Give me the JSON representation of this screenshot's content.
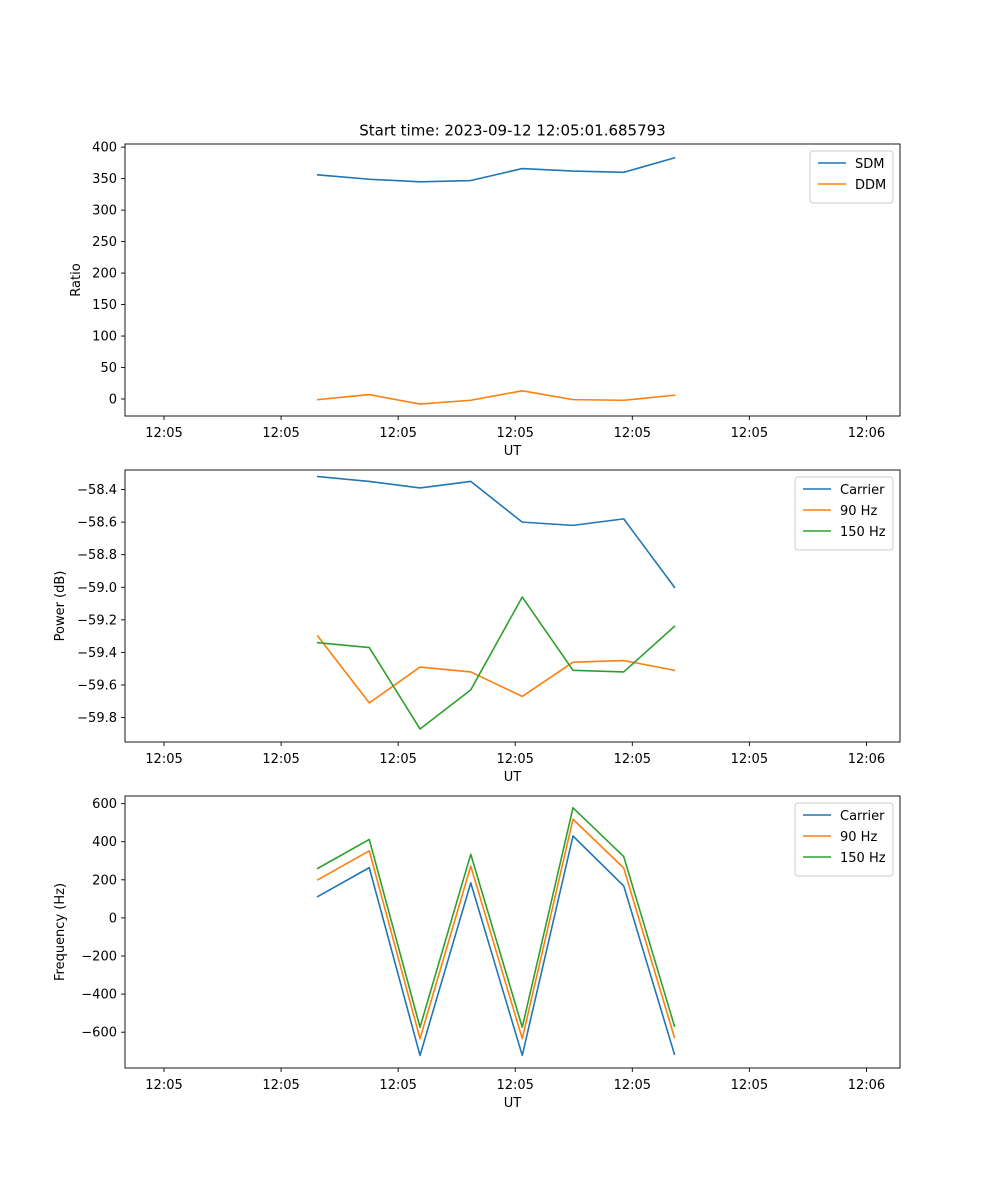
{
  "title": "Start time: 2023-09-12 12:05:01.685793",
  "chart_data": [
    {
      "type": "line",
      "title": "Start time: 2023-09-12 12:05:01.685793",
      "xlabel": "UT",
      "ylabel": "Ratio",
      "xticks": [
        "12:05",
        "12:05",
        "12:05",
        "12:05",
        "12:05",
        "12:05",
        "12:06"
      ],
      "yticks": [
        0,
        50,
        100,
        150,
        200,
        250,
        300,
        350,
        400
      ],
      "ylim": [
        -27,
        405
      ],
      "legend_position": "top-right",
      "x": [
        2.47,
        3.13,
        3.78,
        4.43,
        5.09,
        5.74,
        6.39,
        7.04
      ],
      "series": [
        {
          "name": "SDM",
          "color": "#1f77b4",
          "values": [
            356,
            349,
            345,
            347,
            366,
            362,
            360,
            383
          ]
        },
        {
          "name": "DDM",
          "color": "#ff7f0e",
          "values": [
            -1,
            7,
            -8,
            -2,
            13,
            -1,
            -2,
            6
          ]
        }
      ]
    },
    {
      "type": "line",
      "title": "",
      "xlabel": "UT",
      "ylabel": "Power (dB)",
      "xticks": [
        "12:05",
        "12:05",
        "12:05",
        "12:05",
        "12:05",
        "12:05",
        "12:06"
      ],
      "yticks": [
        -59.8,
        -59.6,
        -59.4,
        -59.2,
        -59.0,
        -58.8,
        -58.6,
        -58.4
      ],
      "ytick_labels": [
        "−59.8",
        "−59.6",
        "−59.4",
        "−59.2",
        "−59.0",
        "−58.8",
        "−58.6",
        "−58.4"
      ],
      "ylim": [
        -59.95,
        -58.28
      ],
      "legend_position": "top-right",
      "x": [
        2.47,
        3.13,
        3.78,
        4.43,
        5.09,
        5.74,
        6.39,
        7.04
      ],
      "series": [
        {
          "name": "Carrier",
          "color": "#1f77b4",
          "values": [
            -58.32,
            -58.35,
            -58.39,
            -58.35,
            -58.6,
            -58.62,
            -58.58,
            -59.0
          ]
        },
        {
          "name": "90 Hz",
          "color": "#ff7f0e",
          "values": [
            -59.3,
            -59.71,
            -59.49,
            -59.52,
            -59.67,
            -59.46,
            -59.45,
            -59.51
          ]
        },
        {
          "name": "150 Hz",
          "color": "#2ca02c",
          "values": [
            -59.34,
            -59.37,
            -59.87,
            -59.63,
            -59.06,
            -59.51,
            -59.52,
            -59.24
          ]
        }
      ]
    },
    {
      "type": "line",
      "title": "",
      "xlabel": "UT",
      "ylabel": "Frequency (Hz)",
      "xticks": [
        "12:05",
        "12:05",
        "12:05",
        "12:05",
        "12:05",
        "12:05",
        "12:06"
      ],
      "yticks": [
        -600,
        -400,
        -200,
        0,
        200,
        400,
        600
      ],
      "ytick_labels": [
        "−600",
        "−400",
        "−200",
        "0",
        "200",
        "400",
        "600"
      ],
      "ylim": [
        -788,
        640
      ],
      "legend_position": "top-right",
      "x": [
        2.47,
        3.13,
        3.78,
        4.43,
        5.09,
        5.74,
        6.39,
        7.04
      ],
      "series": [
        {
          "name": "Carrier",
          "color": "#1f77b4",
          "values": [
            112,
            264,
            -722,
            184,
            -722,
            430,
            168,
            -716
          ]
        },
        {
          "name": "90 Hz",
          "color": "#ff7f0e",
          "values": [
            200,
            352,
            -634,
            272,
            -634,
            518,
            262,
            -628
          ]
        },
        {
          "name": "150 Hz",
          "color": "#2ca02c",
          "values": [
            260,
            412,
            -574,
            334,
            -574,
            578,
            322,
            -568
          ]
        }
      ]
    }
  ]
}
